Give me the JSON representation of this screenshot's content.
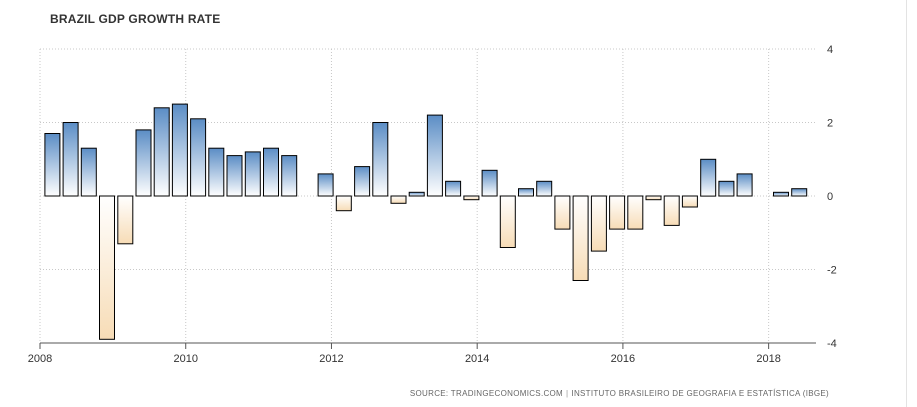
{
  "chart_data": {
    "type": "bar",
    "title": "BRAZIL GDP GROWTH RATE",
    "source": "SOURCE: TRADINGECONOMICS.COM",
    "source2": "INSTITUTO BRASILEIRO DE GEOGRAFIA E ESTATÍSTICA (IBGE)",
    "xlim": [
      2008,
      2018.65
    ],
    "ylim": [
      -4,
      4
    ],
    "x_ticks": [
      2008,
      2010,
      2012,
      2014,
      2016,
      2018
    ],
    "y_ticks": [
      4,
      2,
      0,
      -2,
      -4
    ],
    "grid": true,
    "colors": {
      "positive_top": "#5b8dc5",
      "positive_bottom": "#ffffff",
      "negative_top": "#ffffff",
      "negative_bottom": "#f7dcb6",
      "outline": "#000000"
    },
    "series": [
      {
        "x": [
          2008.17,
          2008.42,
          2008.67,
          2008.92,
          2009.17,
          2009.42,
          2009.67,
          2009.92,
          2010.17,
          2010.42,
          2010.67,
          2010.92,
          2011.17,
          2011.42,
          2011.92,
          2012.17,
          2012.42,
          2012.67,
          2012.92,
          2013.17,
          2013.42,
          2013.67,
          2013.92,
          2014.17,
          2014.42,
          2014.67,
          2014.92,
          2015.17,
          2015.42,
          2015.67,
          2015.92,
          2016.17,
          2016.42,
          2016.67,
          2016.92,
          2017.17,
          2017.42,
          2017.67,
          2018.17,
          2018.42
        ],
        "values": [
          1.7,
          2.0,
          1.3,
          -3.9,
          -1.3,
          1.8,
          2.4,
          2.5,
          2.1,
          1.3,
          1.1,
          1.2,
          1.3,
          1.1,
          0.6,
          -0.4,
          0.8,
          2.0,
          -0.2,
          0.1,
          2.2,
          0.4,
          -0.1,
          0.7,
          -1.4,
          0.2,
          0.4,
          -0.9,
          -2.3,
          -1.5,
          -0.9,
          -0.9,
          -0.1,
          -0.8,
          -0.3,
          1.0,
          0.4,
          0.6,
          0.1,
          0.2
        ]
      }
    ]
  }
}
